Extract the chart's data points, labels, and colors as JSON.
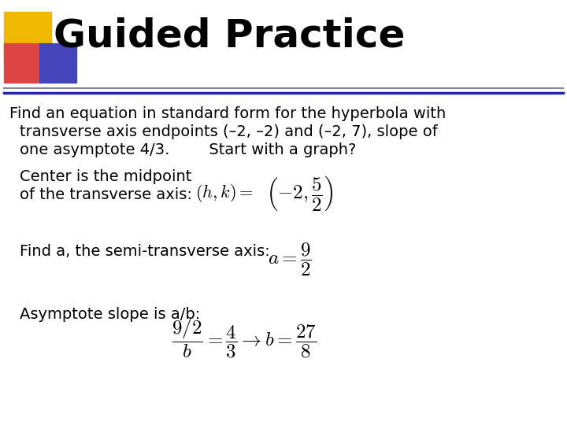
{
  "title": "Guided Practice",
  "bg_color": "#ffffff",
  "title_color": "#000000",
  "title_fontsize": 36,
  "body_fontsize": 14,
  "line1": "Find an equation in standard form for the hyperbola with",
  "line2": "transverse axis endpoints (–2, –2) and (–2, 7), slope of",
  "line3": "one asymptote 4/3.        Start with a graph?",
  "center_text1": "Center is the midpoint",
  "center_text2": "of the transverse axis:",
  "semi_text": "Find a, the semi-transverse axis:",
  "asymp_text": "Asymptote slope is a/b:",
  "square_yellow": "#f0b800",
  "square_red": "#dd4444",
  "square_blue": "#4444bb",
  "divider_gray": "#888888",
  "divider_blue": "#2222aa"
}
